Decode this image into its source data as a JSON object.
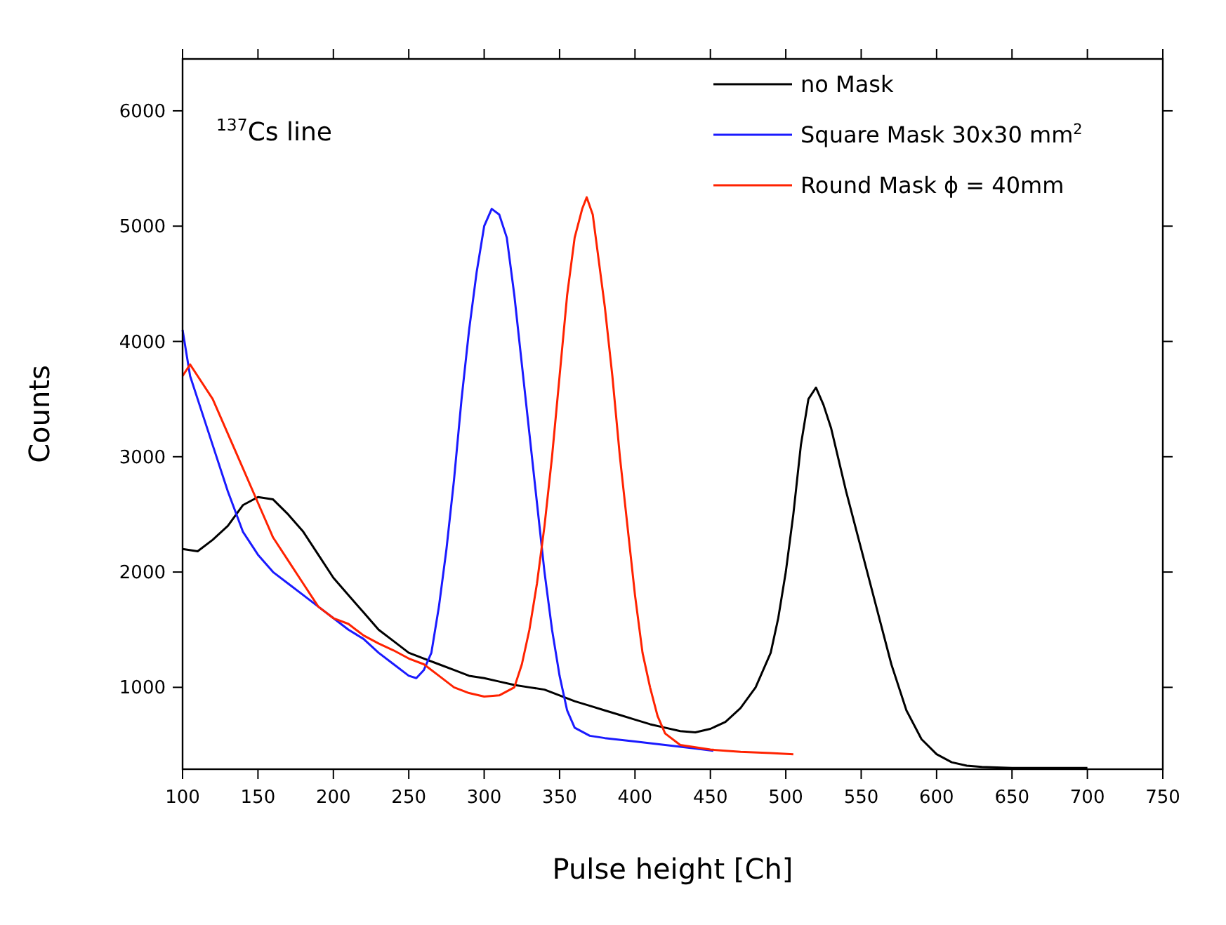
{
  "chart_data": {
    "type": "line",
    "xlabel": "Pulse height  [Ch]",
    "ylabel": "Counts",
    "annotations": [
      "$^{137}$Cs line"
    ],
    "xlim": [
      100,
      750
    ],
    "xticks": [
      100,
      150,
      200,
      250,
      300,
      350,
      400,
      450,
      500,
      550,
      600,
      650,
      700,
      750
    ],
    "ylim": [
      290,
      6450
    ],
    "yticks": [
      1000,
      2000,
      3000,
      4000,
      5000,
      6000
    ],
    "grid": false,
    "legend": "top right",
    "line_style": "solid",
    "series": [
      {
        "name": "no Mask",
        "color": "#000000",
        "x": [
          100,
          110,
          120,
          130,
          140,
          150,
          160,
          170,
          180,
          190,
          200,
          210,
          220,
          230,
          240,
          250,
          260,
          270,
          280,
          290,
          300,
          310,
          320,
          330,
          340,
          350,
          360,
          370,
          380,
          390,
          400,
          410,
          420,
          430,
          440,
          450,
          460,
          470,
          480,
          490,
          495,
          500,
          505,
          510,
          515,
          520,
          525,
          530,
          540,
          550,
          560,
          570,
          580,
          590,
          600,
          610,
          620,
          630,
          650,
          700
        ],
        "values": [
          2200,
          2180,
          2280,
          2400,
          2580,
          2650,
          2630,
          2500,
          2350,
          2150,
          1950,
          1800,
          1650,
          1500,
          1400,
          1300,
          1250,
          1200,
          1150,
          1100,
          1080,
          1050,
          1020,
          1000,
          980,
          930,
          880,
          840,
          800,
          760,
          720,
          680,
          650,
          620,
          610,
          640,
          700,
          820,
          1000,
          1300,
          1600,
          2000,
          2500,
          3100,
          3500,
          3600,
          3450,
          3250,
          2700,
          2200,
          1700,
          1200,
          800,
          550,
          420,
          350,
          320,
          310,
          300,
          300
        ]
      },
      {
        "name": "Square Mask  30x30 mm$^{2}$",
        "color": "#1a1aff",
        "x": [
          100,
          105,
          110,
          120,
          130,
          140,
          150,
          160,
          170,
          180,
          190,
          200,
          210,
          220,
          230,
          240,
          250,
          255,
          260,
          265,
          270,
          275,
          280,
          285,
          290,
          295,
          300,
          305,
          310,
          315,
          320,
          325,
          330,
          335,
          340,
          345,
          350,
          355,
          360,
          370,
          380,
          400,
          420,
          440,
          452
        ],
        "values": [
          4100,
          3700,
          3500,
          3100,
          2700,
          2350,
          2150,
          2000,
          1900,
          1800,
          1700,
          1600,
          1500,
          1420,
          1300,
          1200,
          1100,
          1080,
          1150,
          1300,
          1700,
          2200,
          2800,
          3500,
          4100,
          4600,
          5000,
          5150,
          5100,
          4900,
          4400,
          3800,
          3200,
          2600,
          2000,
          1500,
          1100,
          800,
          650,
          580,
          560,
          530,
          500,
          470,
          450
        ]
      },
      {
        "name": "Round Mask  ϕ = 40mm",
        "color": "#ff2200",
        "x": [
          100,
          105,
          110,
          120,
          130,
          140,
          150,
          160,
          170,
          180,
          190,
          200,
          210,
          220,
          230,
          240,
          250,
          260,
          270,
          280,
          290,
          300,
          310,
          320,
          325,
          330,
          335,
          340,
          345,
          350,
          355,
          360,
          365,
          368,
          372,
          375,
          380,
          385,
          390,
          395,
          400,
          405,
          410,
          415,
          420,
          430,
          450,
          470,
          490,
          505
        ],
        "values": [
          3700,
          3800,
          3700,
          3500,
          3200,
          2900,
          2600,
          2300,
          2100,
          1900,
          1700,
          1600,
          1550,
          1450,
          1380,
          1320,
          1250,
          1200,
          1100,
          1000,
          950,
          920,
          930,
          1000,
          1200,
          1500,
          1900,
          2400,
          3000,
          3700,
          4400,
          4900,
          5150,
          5250,
          5100,
          4800,
          4300,
          3700,
          3000,
          2400,
          1800,
          1300,
          1000,
          750,
          600,
          500,
          460,
          440,
          430,
          420
        ]
      }
    ]
  }
}
